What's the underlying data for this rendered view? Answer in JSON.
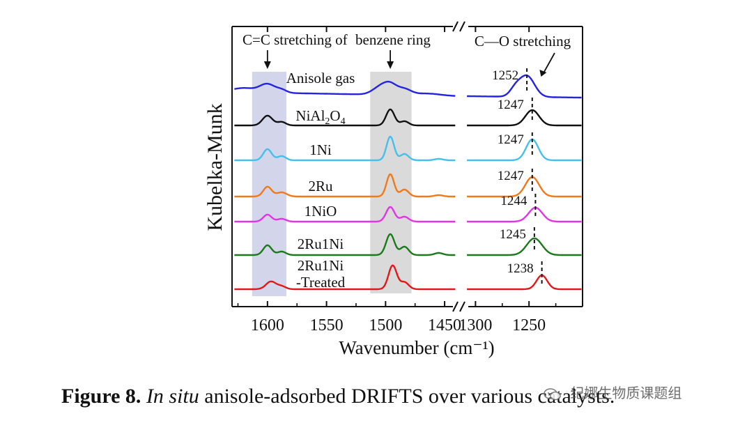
{
  "figure": {
    "caption_label": "Figure 8.",
    "caption_italic": "In situ",
    "caption_rest": " anisole-adsorbed DRIFTS over various catalysts.",
    "watermark": "纪娜生物质课题组"
  },
  "chart_data": {
    "type": "line",
    "title": "",
    "xlabel": "Wavenumber (cm⁻¹)",
    "ylabel": "Kubelka-Munk",
    "x_break": true,
    "segments": [
      {
        "xlim": [
          1630,
          1440
        ],
        "ticks": [
          1600,
          1550,
          1500,
          1450
        ],
        "tick_labels": [
          "1600",
          "1550",
          "1500",
          "1450"
        ]
      },
      {
        "xlim": [
          1310,
          1200
        ],
        "ticks": [
          1300,
          1250
        ],
        "tick_labels": [
          "1300",
          "1250"
        ]
      }
    ],
    "band_annotations": [
      {
        "label_left": "C=C stretching of",
        "label_right": "benzene ring",
        "bands": [
          [
            1613,
            1584
          ],
          [
            1513,
            1478
          ]
        ],
        "arrows_at": [
          1600,
          1496
        ]
      },
      {
        "label": "C—O stretching",
        "arrow_to": 1244
      }
    ],
    "series": [
      {
        "name": "Anisole gas",
        "color": "#2323e0",
        "peak_label": "1252",
        "peak_co": 1252
      },
      {
        "name": "NiAl2O4",
        "color": "#111111",
        "peak_label": "1247",
        "peak_co": 1247
      },
      {
        "name": "1Ni",
        "color": "#44c0ea",
        "peak_label": "1247",
        "peak_co": 1247
      },
      {
        "name": "2Ru",
        "color": "#f07a1a",
        "peak_label": "1247",
        "peak_co": 1247
      },
      {
        "name": "1NiO",
        "color": "#e234e6",
        "peak_label": "1244",
        "peak_co": 1244
      },
      {
        "name": "2Ru1Ni",
        "color": "#1a7a1a",
        "peak_label": "1245",
        "peak_co": 1245
      },
      {
        "name": "2Ru1Ni-Treated",
        "label_line1": "2Ru1Ni",
        "label_line2": "-Treated",
        "color": "#e21818",
        "peak_label": "1238",
        "peak_co": 1238
      }
    ],
    "sample_label_parts": {
      "nial2o4": {
        "a": "NiAl",
        "b": "2",
        "c": "O",
        "d": "4"
      }
    }
  }
}
